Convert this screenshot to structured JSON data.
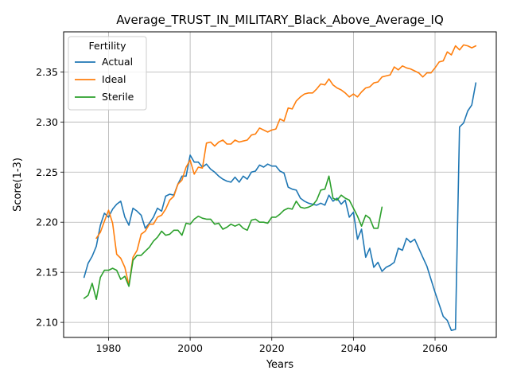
{
  "chart_data": {
    "type": "line",
    "title": "Average_TRUST_IN_MILITARY_Black_Above_Average_IQ",
    "xlabel": "Years",
    "ylabel": "Score(1-3)",
    "xlim": [
      1969,
      2075
    ],
    "ylim": [
      2.085,
      2.39
    ],
    "xticks": [
      1980,
      2000,
      2020,
      2040,
      2060
    ],
    "yticks": [
      2.1,
      2.15,
      2.2,
      2.25,
      2.3,
      2.35
    ],
    "grid": true,
    "legend": {
      "title": "Fertility",
      "placement": "top-left"
    },
    "series": [
      {
        "name": "Actual",
        "color": "#1f77b4",
        "points": [
          [
            1974,
            2.145
          ],
          [
            1975,
            2.159
          ],
          [
            1976,
            2.166
          ],
          [
            1977,
            2.176
          ],
          [
            1978,
            2.197
          ],
          [
            1979,
            2.209
          ],
          [
            1980,
            2.205
          ],
          [
            1981,
            2.213
          ],
          [
            1982,
            2.218
          ],
          [
            1983,
            2.221
          ],
          [
            1984,
            2.205
          ],
          [
            1985,
            2.197
          ],
          [
            1986,
            2.214
          ],
          [
            1987,
            2.211
          ],
          [
            1988,
            2.207
          ],
          [
            1989,
            2.194
          ],
          [
            1990,
            2.199
          ],
          [
            1991,
            2.205
          ],
          [
            1992,
            2.214
          ],
          [
            1993,
            2.211
          ],
          [
            1994,
            2.226
          ],
          [
            1995,
            2.228
          ],
          [
            1996,
            2.227
          ],
          [
            1997,
            2.238
          ],
          [
            1998,
            2.246
          ],
          [
            1999,
            2.246
          ],
          [
            2000,
            2.267
          ],
          [
            2001,
            2.26
          ],
          [
            2002,
            2.26
          ],
          [
            2003,
            2.255
          ],
          [
            2004,
            2.258
          ],
          [
            2005,
            2.253
          ],
          [
            2006,
            2.25
          ],
          [
            2007,
            2.246
          ],
          [
            2008,
            2.243
          ],
          [
            2009,
            2.241
          ],
          [
            2010,
            2.24
          ],
          [
            2011,
            2.245
          ],
          [
            2012,
            2.24
          ],
          [
            2013,
            2.246
          ],
          [
            2014,
            2.243
          ],
          [
            2015,
            2.25
          ],
          [
            2016,
            2.251
          ],
          [
            2017,
            2.257
          ],
          [
            2018,
            2.255
          ],
          [
            2019,
            2.258
          ],
          [
            2020,
            2.256
          ],
          [
            2021,
            2.256
          ],
          [
            2022,
            2.251
          ],
          [
            2023,
            2.249
          ],
          [
            2024,
            2.235
          ],
          [
            2025,
            2.233
          ],
          [
            2026,
            2.232
          ],
          [
            2027,
            2.224
          ],
          [
            2028,
            2.221
          ],
          [
            2029,
            2.219
          ],
          [
            2030,
            2.218
          ],
          [
            2031,
            2.217
          ],
          [
            2032,
            2.219
          ],
          [
            2033,
            2.217
          ],
          [
            2034,
            2.227
          ],
          [
            2035,
            2.221
          ],
          [
            2036,
            2.224
          ],
          [
            2037,
            2.218
          ],
          [
            2038,
            2.222
          ],
          [
            2039,
            2.205
          ],
          [
            2040,
            2.21
          ],
          [
            2041,
            2.183
          ],
          [
            2042,
            2.193
          ],
          [
            2043,
            2.165
          ],
          [
            2044,
            2.174
          ],
          [
            2045,
            2.155
          ],
          [
            2046,
            2.16
          ],
          [
            2047,
            2.151
          ],
          [
            2048,
            2.155
          ],
          [
            2049,
            2.157
          ],
          [
            2050,
            2.16
          ],
          [
            2051,
            2.174
          ],
          [
            2052,
            2.172
          ],
          [
            2053,
            2.184
          ],
          [
            2054,
            2.18
          ],
          [
            2055,
            2.183
          ],
          [
            2056,
            2.174
          ],
          [
            2057,
            2.165
          ],
          [
            2058,
            2.156
          ],
          [
            2059,
            2.143
          ],
          [
            2060,
            2.13
          ],
          [
            2061,
            2.118
          ],
          [
            2062,
            2.106
          ],
          [
            2063,
            2.102
          ],
          [
            2064,
            2.092
          ],
          [
            2065,
            2.093
          ],
          [
            2066,
            2.295
          ],
          [
            2067,
            2.299
          ],
          [
            2068,
            2.311
          ],
          [
            2069,
            2.317
          ],
          [
            2070,
            2.339
          ]
        ]
      },
      {
        "name": "Ideal",
        "color": "#ff7f0e",
        "points": [
          [
            1977,
            2.184
          ],
          [
            1978,
            2.19
          ],
          [
            1979,
            2.201
          ],
          [
            1980,
            2.212
          ],
          [
            1981,
            2.199
          ],
          [
            1982,
            2.168
          ],
          [
            1983,
            2.164
          ],
          [
            1984,
            2.155
          ],
          [
            1985,
            2.137
          ],
          [
            1986,
            2.165
          ],
          [
            1987,
            2.172
          ],
          [
            1988,
            2.188
          ],
          [
            1989,
            2.191
          ],
          [
            1990,
            2.198
          ],
          [
            1991,
            2.198
          ],
          [
            1992,
            2.205
          ],
          [
            1993,
            2.207
          ],
          [
            1994,
            2.213
          ],
          [
            1995,
            2.222
          ],
          [
            1996,
            2.226
          ],
          [
            1997,
            2.238
          ],
          [
            1998,
            2.242
          ],
          [
            1999,
            2.255
          ],
          [
            2000,
            2.262
          ],
          [
            2001,
            2.248
          ],
          [
            2002,
            2.255
          ],
          [
            2003,
            2.254
          ],
          [
            2004,
            2.279
          ],
          [
            2005,
            2.28
          ],
          [
            2006,
            2.276
          ],
          [
            2007,
            2.28
          ],
          [
            2008,
            2.282
          ],
          [
            2009,
            2.278
          ],
          [
            2010,
            2.278
          ],
          [
            2011,
            2.282
          ],
          [
            2012,
            2.28
          ],
          [
            2013,
            2.281
          ],
          [
            2014,
            2.282
          ],
          [
            2015,
            2.287
          ],
          [
            2016,
            2.288
          ],
          [
            2017,
            2.294
          ],
          [
            2018,
            2.292
          ],
          [
            2019,
            2.29
          ],
          [
            2020,
            2.292
          ],
          [
            2021,
            2.293
          ],
          [
            2022,
            2.303
          ],
          [
            2023,
            2.301
          ],
          [
            2024,
            2.314
          ],
          [
            2025,
            2.313
          ],
          [
            2026,
            2.321
          ],
          [
            2027,
            2.325
          ],
          [
            2028,
            2.328
          ],
          [
            2029,
            2.329
          ],
          [
            2030,
            2.329
          ],
          [
            2031,
            2.333
          ],
          [
            2032,
            2.338
          ],
          [
            2033,
            2.337
          ],
          [
            2034,
            2.343
          ],
          [
            2035,
            2.337
          ],
          [
            2036,
            2.334
          ],
          [
            2037,
            2.332
          ],
          [
            2038,
            2.329
          ],
          [
            2039,
            2.325
          ],
          [
            2040,
            2.328
          ],
          [
            2041,
            2.325
          ],
          [
            2042,
            2.33
          ],
          [
            2043,
            2.334
          ],
          [
            2044,
            2.335
          ],
          [
            2045,
            2.339
          ],
          [
            2046,
            2.34
          ],
          [
            2047,
            2.345
          ],
          [
            2048,
            2.346
          ],
          [
            2049,
            2.347
          ],
          [
            2050,
            2.355
          ],
          [
            2051,
            2.352
          ],
          [
            2052,
            2.356
          ],
          [
            2053,
            2.354
          ],
          [
            2054,
            2.353
          ],
          [
            2055,
            2.351
          ],
          [
            2056,
            2.349
          ],
          [
            2057,
            2.345
          ],
          [
            2058,
            2.349
          ],
          [
            2059,
            2.349
          ],
          [
            2060,
            2.354
          ],
          [
            2061,
            2.36
          ],
          [
            2062,
            2.361
          ],
          [
            2063,
            2.37
          ],
          [
            2064,
            2.367
          ],
          [
            2065,
            2.376
          ],
          [
            2066,
            2.372
          ],
          [
            2067,
            2.377
          ],
          [
            2068,
            2.376
          ],
          [
            2069,
            2.374
          ],
          [
            2070,
            2.376
          ]
        ]
      },
      {
        "name": "Sterile",
        "color": "#2ca02c",
        "points": [
          [
            1974,
            2.124
          ],
          [
            1975,
            2.127
          ],
          [
            1976,
            2.139
          ],
          [
            1977,
            2.123
          ],
          [
            1978,
            2.145
          ],
          [
            1979,
            2.152
          ],
          [
            1980,
            2.152
          ],
          [
            1981,
            2.154
          ],
          [
            1982,
            2.152
          ],
          [
            1983,
            2.143
          ],
          [
            1984,
            2.146
          ],
          [
            1985,
            2.136
          ],
          [
            1986,
            2.162
          ],
          [
            1987,
            2.167
          ],
          [
            1988,
            2.167
          ],
          [
            1989,
            2.171
          ],
          [
            1990,
            2.175
          ],
          [
            1991,
            2.181
          ],
          [
            1992,
            2.185
          ],
          [
            1993,
            2.191
          ],
          [
            1994,
            2.187
          ],
          [
            1995,
            2.188
          ],
          [
            1996,
            2.192
          ],
          [
            1997,
            2.192
          ],
          [
            1998,
            2.187
          ],
          [
            1999,
            2.199
          ],
          [
            2000,
            2.198
          ],
          [
            2001,
            2.203
          ],
          [
            2002,
            2.206
          ],
          [
            2003,
            2.204
          ],
          [
            2004,
            2.203
          ],
          [
            2005,
            2.203
          ],
          [
            2006,
            2.198
          ],
          [
            2007,
            2.199
          ],
          [
            2008,
            2.193
          ],
          [
            2009,
            2.195
          ],
          [
            2010,
            2.198
          ],
          [
            2011,
            2.196
          ],
          [
            2012,
            2.198
          ],
          [
            2013,
            2.194
          ],
          [
            2014,
            2.192
          ],
          [
            2015,
            2.202
          ],
          [
            2016,
            2.203
          ],
          [
            2017,
            2.2
          ],
          [
            2018,
            2.2
          ],
          [
            2019,
            2.199
          ],
          [
            2020,
            2.205
          ],
          [
            2021,
            2.205
          ],
          [
            2022,
            2.208
          ],
          [
            2023,
            2.212
          ],
          [
            2024,
            2.214
          ],
          [
            2025,
            2.213
          ],
          [
            2026,
            2.221
          ],
          [
            2027,
            2.215
          ],
          [
            2028,
            2.214
          ],
          [
            2029,
            2.215
          ],
          [
            2030,
            2.217
          ],
          [
            2031,
            2.222
          ],
          [
            2032,
            2.232
          ],
          [
            2033,
            2.233
          ],
          [
            2034,
            2.246
          ],
          [
            2035,
            2.224
          ],
          [
            2036,
            2.222
          ],
          [
            2037,
            2.227
          ],
          [
            2038,
            2.224
          ],
          [
            2039,
            2.222
          ],
          [
            2040,
            2.214
          ],
          [
            2041,
            2.206
          ],
          [
            2042,
            2.196
          ],
          [
            2043,
            2.207
          ],
          [
            2044,
            2.204
          ],
          [
            2045,
            2.194
          ],
          [
            2046,
            2.194
          ],
          [
            2047,
            2.215
          ]
        ]
      }
    ]
  }
}
